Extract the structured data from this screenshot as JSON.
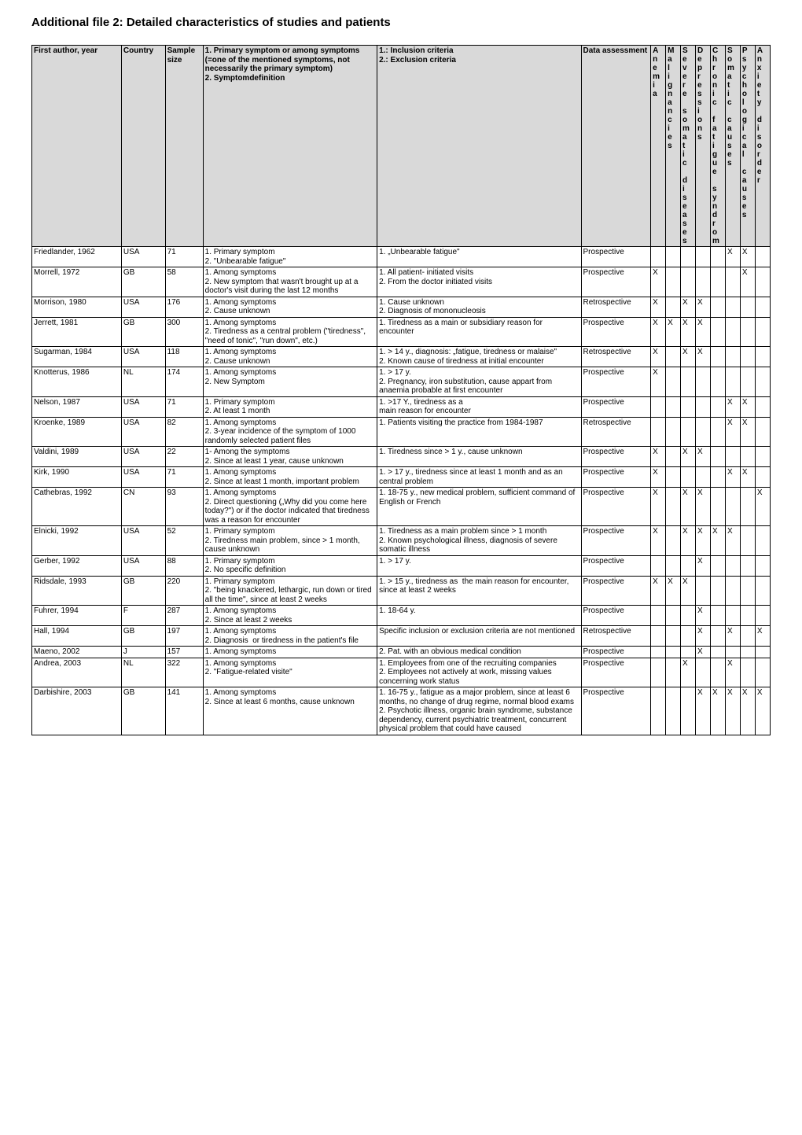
{
  "title": "Additional file 2: Detailed characteristics of studies and patients",
  "columns": [
    "First author, year",
    "Country",
    "Sample size",
    "1. Primary symptom or among symptoms (=one of the mentioned symptoms, not necessarily the primary symptom)\n2. Symptomdefinition",
    "1.: Inclusion criteria\n2.: Exclusion criteria",
    "Data assessment"
  ],
  "flag_headers": [
    "Anemia",
    "Malignancies",
    "Severe somatic diseases",
    "Depressions",
    "Chronic fatigue syndrom",
    "Somatic causes",
    "Psychological causes",
    "Anxiety disorder"
  ],
  "rows": [
    {
      "author": "Friedlander, 1962",
      "country": "USA",
      "sample": "71",
      "prim": "1. Primary symptom\n2. \"Unbearable fatigue\"",
      "incl": "1. „Unbearable fatigue\"",
      "data": "Prospective",
      "f": [
        "",
        "",
        "",
        "",
        "",
        "X",
        "X",
        ""
      ]
    },
    {
      "author": "Morrell, 1972",
      "country": "GB",
      "sample": "58",
      "prim": "1. Among symptoms\n2. New symptom that wasn't brought up at a doctor's visit during the last 12 months",
      "incl": "1. All patient- initiated visits\n2. From the doctor initiated visits",
      "data": "Prospective",
      "f": [
        "X",
        "",
        "",
        "",
        "",
        "",
        "X",
        ""
      ]
    },
    {
      "author": "Morrison, 1980",
      "country": "USA",
      "sample": "176",
      "prim": "1. Among symptoms\n2. Cause unknown",
      "incl": "1. Cause unknown\n2. Diagnosis of mononucleosis",
      "data": "Retrospective",
      "f": [
        "X",
        "",
        "X",
        "X",
        "",
        "",
        "",
        ""
      ]
    },
    {
      "author": "Jerrett, 1981",
      "country": "GB",
      "sample": "300",
      "prim": "1. Among symptoms\n2. Tiredness as a central problem (\"tiredness\", \"need of tonic\", \"run down\", etc.)",
      "incl": "1. Tiredness as a main or subsidiary reason for encounter",
      "data": "Prospective",
      "f": [
        "X",
        "X",
        "X",
        "X",
        "",
        "",
        "",
        ""
      ]
    },
    {
      "author": "Sugarman, 1984",
      "country": "USA",
      "sample": "118",
      "prim": "1. Among symptoms\n2. Cause unknown",
      "incl": "1. > 14 y., diagnosis: „fatigue, tiredness or malaise\"\n2. Known cause of tiredness at initial encounter",
      "data": "Retrospective",
      "f": [
        "X",
        "",
        "X",
        "X",
        "",
        "",
        "",
        ""
      ]
    },
    {
      "author": "Knotterus, 1986",
      "country": "NL",
      "sample": "174",
      "prim": "1. Among symptoms\n2. New Symptom",
      "incl": "1. > 17 y.\n2. Pregnancy, iron substitution, cause appart from anaemia probable at first encounter",
      "data": "Prospective",
      "f": [
        "X",
        "",
        "",
        "",
        "",
        "",
        "",
        ""
      ]
    },
    {
      "author": "Nelson, 1987",
      "country": "USA",
      "sample": "71",
      "prim": "1. Primary symptom\n2. At least 1 month",
      "incl": "1. >17 Y., tiredness as a\nmain reason for encounter",
      "data": "Prospective",
      "f": [
        "",
        "",
        "",
        "",
        "",
        "X",
        "X",
        ""
      ]
    },
    {
      "author": "Kroenke, 1989",
      "country": "USA",
      "sample": "82",
      "prim": "1. Among symptoms\n2. 3-year incidence of the symptom of 1000 randomly selected patient files",
      "incl": "1. Patients visiting the practice from 1984-1987",
      "data": "Retrospective",
      "f": [
        "",
        "",
        "",
        "",
        "",
        "X",
        "X",
        ""
      ]
    },
    {
      "author": "Valdini, 1989",
      "country": "USA",
      "sample": "22",
      "prim": "1- Among the symptoms\n2. Since at least 1 year, cause unknown",
      "incl": "1. Tiredness since > 1 y., cause unknown",
      "data": "Prospective",
      "f": [
        "X",
        "",
        "X",
        "X",
        "",
        "",
        "",
        ""
      ]
    },
    {
      "author": "Kirk, 1990",
      "country": "USA",
      "sample": "71",
      "prim": "1. Among symptoms\n2. Since at least 1 month, important problem",
      "incl": "1. > 17 y., tiredness since at least 1 month and as an central problem",
      "data": "Prospective",
      "f": [
        "X",
        "",
        "",
        "",
        "",
        "X",
        "X",
        ""
      ]
    },
    {
      "author": "Cathebras, 1992",
      "country": "CN",
      "sample": "93",
      "prim": "1. Among symptoms\n2. Direct questioning („Why did you come here today?\") or if the doctor indicated that tiredness was a reason for encounter",
      "incl": "1. 18-75 y., new medical problem, sufficient command of English or French",
      "data": "Prospective",
      "f": [
        "X",
        "",
        "X",
        "X",
        "",
        "",
        "",
        "X"
      ]
    },
    {
      "author": "Elnicki, 1992",
      "country": "USA",
      "sample": "52",
      "prim": "1. Primary symptom\n2. Tiredness main problem, since > 1 month, cause unknown",
      "incl": "1. Tiredness as a main problem since > 1 month\n2. Known psychological illness, diagnosis of severe somatic illness",
      "data": "Prospective",
      "f": [
        "X",
        "",
        "X",
        "X",
        "X",
        "X",
        "",
        ""
      ]
    },
    {
      "author": "Gerber, 1992",
      "country": "USA",
      "sample": "88",
      "prim": "1. Primary symptom\n2. No specific definition",
      "incl": "1. > 17 y.",
      "data": "Prospective",
      "f": [
        "",
        "",
        "",
        "X",
        "",
        "",
        "",
        ""
      ]
    },
    {
      "author": "Ridsdale, 1993",
      "country": "GB",
      "sample": "220",
      "prim": "1. Primary symptom\n2. \"being knackered, lethargic, run down or tired all the time\", since at least 2 weeks",
      "incl": "1. > 15 y., tiredness as  the main reason for encounter, since at least 2 weeks",
      "data": "Prospective",
      "f": [
        "X",
        "X",
        "X",
        "",
        "",
        "",
        "",
        ""
      ]
    },
    {
      "author": "Fuhrer, 1994",
      "country": "F",
      "sample": "287",
      "prim": "1. Among symptoms\n2. Since at least 2 weeks",
      "incl": "1. 18-64 y.",
      "data": "Prospective",
      "f": [
        "",
        "",
        "",
        "X",
        "",
        "",
        "",
        ""
      ]
    },
    {
      "author": "Hall, 1994",
      "country": "GB",
      "sample": "197",
      "prim": "1. Among symptoms\n2. Diagnosis  or tiredness in the patient's file",
      "incl": "Specific inclusion or exclusion criteria are not mentioned",
      "data": "Retrospective",
      "f": [
        "",
        "",
        "",
        "X",
        "",
        "X",
        "",
        "X"
      ]
    },
    {
      "author": "Maeno, 2002",
      "country": "J",
      "sample": "157",
      "prim": "1. Among symptoms",
      "incl": "2. Pat. with an obvious medical condition",
      "data": "Prospective",
      "f": [
        "",
        "",
        "",
        "X",
        "",
        "",
        "",
        ""
      ]
    },
    {
      "author": "Andrea, 2003",
      "country": "NL",
      "sample": "322",
      "prim": "1. Among symptoms\n2. \"Fatigue-related visite\"",
      "incl": "1. Employees from one of the recruiting companies\n2. Employees not actively at work, missing values concerning work status",
      "data": "Prospective",
      "f": [
        "",
        "",
        "X",
        "",
        "",
        "X",
        "",
        ""
      ]
    },
    {
      "author": "Darbishire, 2003",
      "country": "GB",
      "sample": "141",
      "prim": "1. Among symptoms\n2. Since at least 6 months, cause unknown",
      "incl": "1. 16-75 y., fatigue as a major problem, since at least 6 months, no change of drug regime, normal blood exams\n2. Psychotic illness, organic brain syndrome, substance dependency, current psychiatric treatment, concurrent physical problem that could have caused",
      "data": "Prospective",
      "f": [
        "",
        "",
        "",
        "X",
        "X",
        "X",
        "X",
        "X"
      ]
    }
  ]
}
